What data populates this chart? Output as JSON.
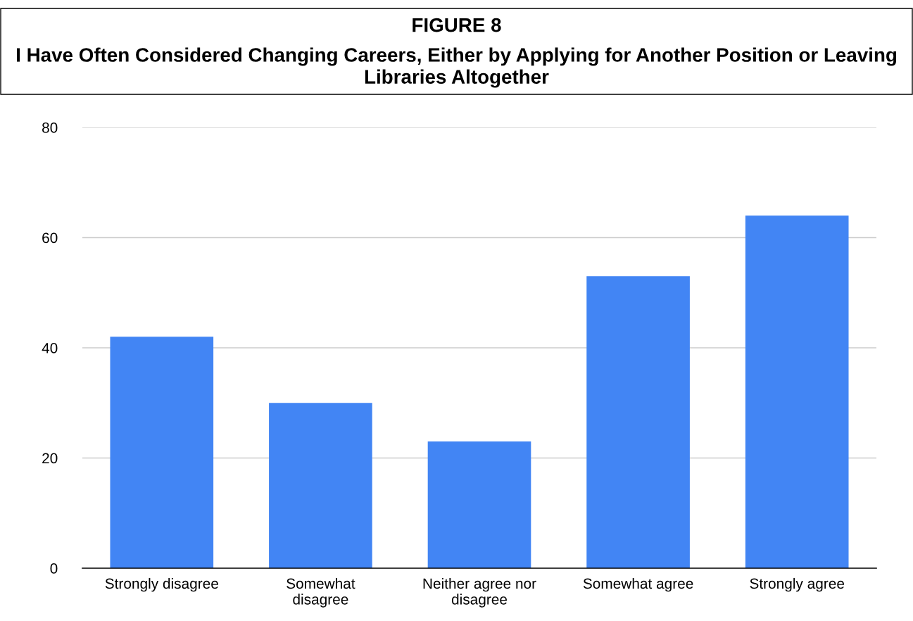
{
  "chart_data": {
    "type": "bar",
    "title": "FIGURE 8",
    "subtitle": "I Have Often Considered Changing Careers, Either by Applying for Another Position or Leaving Libraries Altogether",
    "categories": [
      "Strongly disagree",
      "Somewhat\ndisagree",
      "Neither agree nor\ndisagree",
      "Somewhat agree",
      "Strongly agree"
    ],
    "values": [
      42,
      30,
      23,
      53,
      64
    ],
    "color": "#4285f4",
    "ylim": [
      0,
      80
    ],
    "yticks": [
      0,
      20,
      40,
      60,
      80
    ],
    "grid": "y",
    "legend": false
  }
}
